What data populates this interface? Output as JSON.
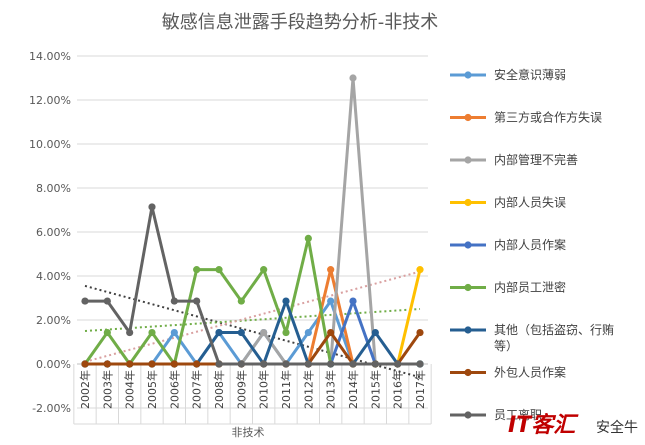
{
  "chart_data": {
    "type": "line",
    "title": "敏感信息泄露手段趋势分析-非技术",
    "xlabel": "非技术",
    "ylabel": "",
    "categories": [
      "2002年",
      "2003年",
      "2004年",
      "2005年",
      "2006年",
      "2007年",
      "2008年",
      "2009年",
      "2010年",
      "2011年",
      "2012年",
      "2013年",
      "2014年",
      "2015年",
      "2016年",
      "2017年"
    ],
    "ylim": [
      -2,
      14
    ],
    "yticks": [
      "-2.00%",
      "0.00%",
      "2.00%",
      "4.00%",
      "6.00%",
      "8.00%",
      "10.00%",
      "12.00%",
      "14.00%"
    ],
    "ytick_values": [
      -2,
      0,
      2,
      4,
      6,
      8,
      10,
      12,
      14
    ],
    "grid": true,
    "legend_position": "right",
    "series": [
      {
        "name": "安全意识薄弱",
        "color": "#5b9bd5",
        "values": [
          0,
          0,
          0,
          0,
          1.43,
          0,
          1.43,
          0,
          1.43,
          0,
          1.43,
          2.86,
          0,
          0,
          0,
          0
        ]
      },
      {
        "name": "第三方或合作方失误",
        "color": "#ed7d31",
        "values": [
          0,
          0,
          0,
          0,
          0,
          0,
          0,
          0,
          0,
          0,
          0,
          4.29,
          0,
          0,
          0,
          0
        ]
      },
      {
        "name": "内部管理不完善",
        "color": "#a5a5a5",
        "values": [
          0,
          0,
          0,
          0,
          0,
          0,
          0,
          0,
          1.43,
          0,
          0,
          0,
          13.0,
          0,
          0,
          0
        ]
      },
      {
        "name": "内部人员失误",
        "color": "#ffc000",
        "values": [
          0,
          0,
          0,
          0,
          0,
          0,
          0,
          0,
          0,
          0,
          0,
          0,
          0,
          0,
          0,
          4.29
        ]
      },
      {
        "name": "内部人员作案",
        "color": "#4472c4",
        "values": [
          0,
          0,
          0,
          0,
          0,
          0,
          0,
          0,
          0,
          0,
          0,
          0,
          2.86,
          0,
          0,
          0
        ]
      },
      {
        "name": "内部员工泄密",
        "color": "#70ad47",
        "values": [
          0,
          1.43,
          0,
          1.43,
          0,
          4.29,
          4.29,
          2.86,
          4.29,
          1.43,
          5.71,
          0,
          0,
          0,
          0,
          0
        ]
      },
      {
        "name": "其他（包括盗窃、行贿等）",
        "color": "#255e91",
        "values": [
          0,
          0,
          0,
          0,
          0,
          0,
          1.43,
          1.43,
          0,
          2.86,
          0,
          0,
          0,
          1.43,
          0,
          0
        ]
      },
      {
        "name": "外包人员作案",
        "color": "#9e480e",
        "values": [
          0,
          0,
          0,
          0,
          0,
          0,
          0,
          0,
          0,
          0,
          0,
          1.43,
          0,
          0,
          0,
          1.43
        ]
      },
      {
        "name": "员工离职",
        "color": "#636363",
        "values": [
          2.86,
          2.86,
          1.43,
          7.14,
          2.86,
          2.86,
          0,
          0,
          0,
          0,
          0,
          0,
          0,
          0,
          0,
          0
        ]
      }
    ],
    "legend_labels": [
      {
        "key": "安全意识薄弱",
        "lines": [
          "安全意识薄弱"
        ]
      },
      {
        "key": "第三方或合作方失误",
        "lines": [
          "第三方或合作方失误"
        ]
      },
      {
        "key": "内部管理不完善",
        "lines": [
          "内部管理不完善"
        ]
      },
      {
        "key": "内部人员失误",
        "lines": [
          "内部人员失误"
        ]
      },
      {
        "key": "内部人员作案",
        "lines": [
          "内部人员作案"
        ]
      },
      {
        "key": "内部员工泄密",
        "lines": [
          "内部员工泄密"
        ]
      },
      {
        "key": "其他（包括盗窃、行贿等）",
        "lines": [
          "其他（包括盗窃、行贿",
          "等）"
        ]
      },
      {
        "key": "外包人员作案",
        "lines": [
          "外包人员作案"
        ]
      },
      {
        "key": "员工离职",
        "lines": [
          "员工离职"
        ]
      }
    ],
    "trendlines": [
      {
        "series": "员工离职",
        "color": "#404040",
        "from": [
          0,
          3.55
        ],
        "to": [
          15,
          -0.6
        ]
      },
      {
        "series": "内部员工泄密",
        "color": "#70ad47",
        "from": [
          0,
          1.5
        ],
        "to": [
          15,
          2.5
        ]
      },
      {
        "series": "内部管理不完善",
        "color": "#d9a0a0",
        "from": [
          0,
          0.1
        ],
        "to": [
          15,
          4.2
        ]
      }
    ]
  },
  "watermark": {
    "brand": "IT客汇",
    "account": "安全牛"
  }
}
